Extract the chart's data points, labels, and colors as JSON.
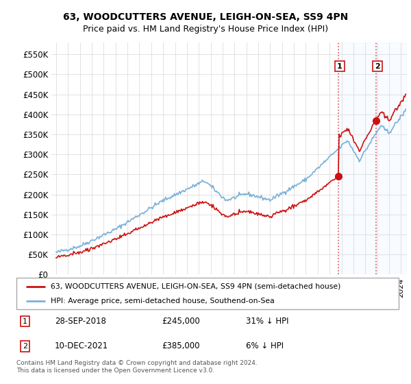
{
  "title": "63, WOODCUTTERS AVENUE, LEIGH-ON-SEA, SS9 4PN",
  "subtitle": "Price paid vs. HM Land Registry's House Price Index (HPI)",
  "legend_line1": "63, WOODCUTTERS AVENUE, LEIGH-ON-SEA, SS9 4PN (semi-detached house)",
  "legend_line2": "HPI: Average price, semi-detached house, Southend-on-Sea",
  "footnote": "Contains HM Land Registry data © Crown copyright and database right 2024.\nThis data is licensed under the Open Government Licence v3.0.",
  "sale1_date": "28-SEP-2018",
  "sale1_price": "£245,000",
  "sale1_hpi": "31% ↓ HPI",
  "sale2_date": "10-DEC-2021",
  "sale2_price": "£385,000",
  "sale2_hpi": "6% ↓ HPI",
  "hpi_color": "#7ab0d8",
  "sale_color": "#cc1111",
  "vline_color": "#dd5555",
  "shade_color": "#ddeeff",
  "ylim_min": 0,
  "ylim_max": 580000,
  "yticks": [
    0,
    50000,
    100000,
    150000,
    200000,
    250000,
    300000,
    350000,
    400000,
    450000,
    500000,
    550000
  ],
  "ytick_labels": [
    "£0",
    "£50K",
    "£100K",
    "£150K",
    "£200K",
    "£250K",
    "£300K",
    "£350K",
    "£400K",
    "£450K",
    "£500K",
    "£550K"
  ],
  "sale1_x": 2018.75,
  "sale1_y": 245000,
  "sale2_x": 2021.92,
  "sale2_y": 385000,
  "xlim_min": 1994.6,
  "xlim_max": 2024.5,
  "xtick_start": 1995,
  "xtick_end": 2024
}
